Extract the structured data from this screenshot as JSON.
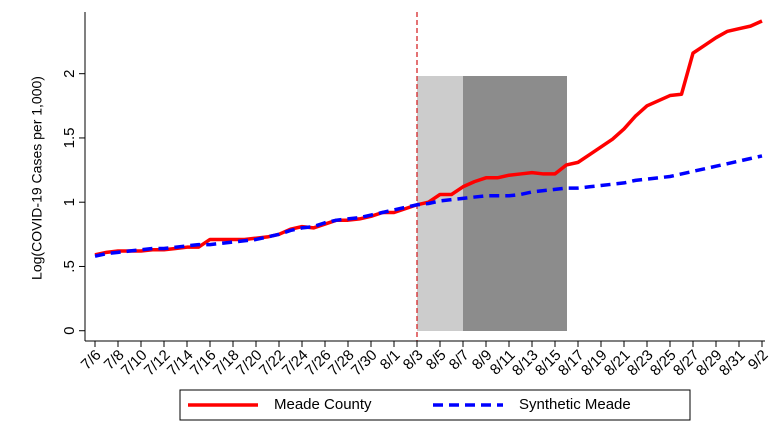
{
  "chart_data": {
    "type": "line",
    "y_label": "Log(COVID-19 Cases per 1,000)",
    "categories": [
      "7/6",
      null,
      "7/8",
      null,
      "7/10",
      null,
      "7/12",
      null,
      "7/14",
      null,
      "7/16",
      null,
      "7/18",
      null,
      "7/20",
      null,
      "7/22",
      null,
      "7/24",
      null,
      "7/26",
      null,
      "7/28",
      null,
      "7/30",
      null,
      "8/1",
      null,
      "8/3",
      null,
      "8/5",
      null,
      "8/7",
      null,
      "8/9",
      null,
      "8/11",
      null,
      "8/13",
      null,
      "8/15",
      null,
      "8/17",
      null,
      "8/19",
      null,
      "8/21",
      null,
      "8/23",
      null,
      "8/25",
      null,
      "8/27",
      null,
      "8/29",
      null,
      "8/31",
      null,
      "9/2"
    ],
    "series": [
      {
        "name": "Meade County",
        "color": "#ff0000",
        "style": "solid",
        "values": [
          0.59,
          0.61,
          0.62,
          0.62,
          0.62,
          0.63,
          0.63,
          0.64,
          0.65,
          0.65,
          0.71,
          0.71,
          0.71,
          0.71,
          0.72,
          0.73,
          0.75,
          0.79,
          0.81,
          0.8,
          0.83,
          0.86,
          0.86,
          0.87,
          0.89,
          0.92,
          0.92,
          0.95,
          0.98,
          1.0,
          1.06,
          1.06,
          1.12,
          1.16,
          1.19,
          1.19,
          1.21,
          1.22,
          1.23,
          1.22,
          1.22,
          1.29,
          1.31,
          1.37,
          1.43,
          1.49,
          1.57,
          1.67,
          1.75,
          1.79,
          1.83,
          1.84,
          2.16,
          2.22,
          2.28,
          2.33,
          2.35,
          2.37,
          2.41
        ]
      },
      {
        "name": "Synthetic Meade",
        "color": "#0000ff",
        "style": "dashed",
        "values": [
          0.58,
          0.6,
          0.61,
          0.62,
          0.63,
          0.64,
          0.64,
          0.65,
          0.66,
          0.67,
          0.67,
          0.68,
          0.69,
          0.7,
          0.71,
          0.73,
          0.75,
          0.78,
          0.8,
          0.81,
          0.84,
          0.86,
          0.87,
          0.88,
          0.9,
          0.92,
          0.94,
          0.96,
          0.98,
          0.99,
          1.01,
          1.02,
          1.03,
          1.04,
          1.05,
          1.05,
          1.05,
          1.06,
          1.08,
          1.09,
          1.1,
          1.11,
          1.11,
          1.12,
          1.13,
          1.14,
          1.15,
          1.17,
          1.18,
          1.19,
          1.2,
          1.22,
          1.24,
          1.26,
          1.28,
          1.3,
          1.32,
          1.34,
          1.36
        ]
      }
    ],
    "ylim": [
      -0.08,
      2.48
    ],
    "yticks": [
      0,
      {
        "value": 0.5,
        "label": ".5"
      },
      1,
      1.5,
      2
    ],
    "legend": "bottom"
  }
}
